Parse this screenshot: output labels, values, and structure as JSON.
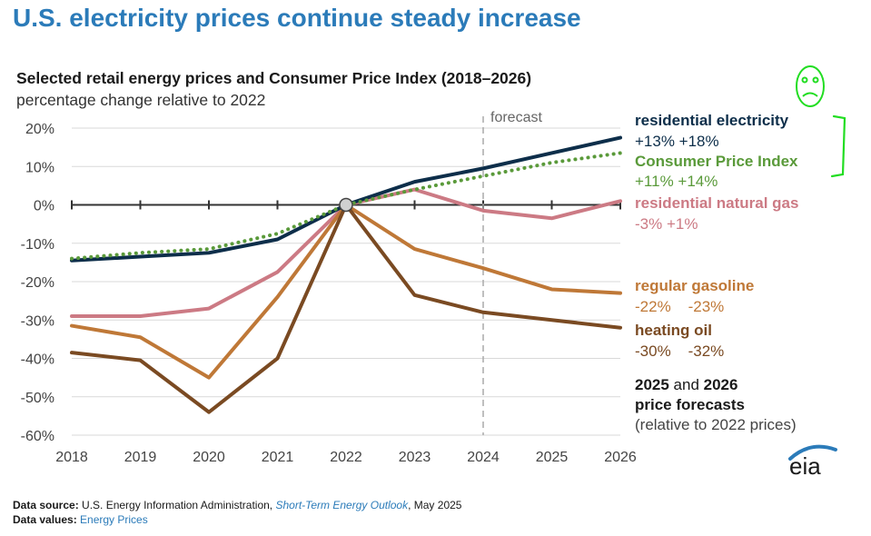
{
  "headline": "U.S. electricity prices continue steady increase",
  "chart_data": {
    "type": "line",
    "title": "Selected retail energy prices and Consumer Price Index (2018–2026)",
    "subtitle": "percentage change relative to 2022",
    "x": [
      2018,
      2019,
      2020,
      2021,
      2022,
      2023,
      2024,
      2025,
      2026
    ],
    "x_tick_labels": [
      "2018",
      "2019",
      "2020",
      "2021",
      "2022",
      "2023",
      "2024",
      "2025",
      "2026"
    ],
    "ylim": [
      -60,
      20
    ],
    "y_ticks": [
      20,
      10,
      0,
      -10,
      -20,
      -30,
      -40,
      -50,
      -60
    ],
    "y_tick_labels": [
      "20%",
      "10%",
      "0%",
      "-10%",
      "-20%",
      "-30%",
      "-40%",
      "-50%",
      "-60%"
    ],
    "grid": true,
    "forecast_start": 2024,
    "forecast_label": "forecast",
    "series": [
      {
        "name": "residential electricity",
        "color": "#0d2e4a",
        "style": "solid",
        "values": [
          -14.5,
          -13.5,
          -12.5,
          -9,
          0,
          6,
          9.5,
          13.5,
          17.5
        ]
      },
      {
        "name": "Consumer Price Index",
        "color": "#5a9a3a",
        "style": "dotted",
        "values": [
          -14,
          -12.5,
          -11.5,
          -7.5,
          0,
          4,
          7.5,
          11,
          13.5
        ]
      },
      {
        "name": "residential natural gas",
        "color": "#cc7a84",
        "style": "solid",
        "values": [
          -29,
          -29,
          -27,
          -17.5,
          0,
          4,
          -1.5,
          -3.5,
          1
        ]
      },
      {
        "name": "regular gasoline",
        "color": "#bf7837",
        "style": "solid",
        "values": [
          -31.5,
          -34.5,
          -45,
          -24,
          0,
          -11.5,
          -16.5,
          -22,
          -23
        ]
      },
      {
        "name": "heating oil",
        "color": "#7a4a22",
        "style": "solid",
        "values": [
          -38.5,
          -40.5,
          -54,
          -40,
          0,
          -23.5,
          -28,
          -30,
          -32
        ]
      }
    ],
    "labels": [
      {
        "name": "residential electricity",
        "forecasts": "+13% +18%",
        "color": "#0d2e4a"
      },
      {
        "name": "Consumer Price Index",
        "forecasts": "+11% +14%",
        "color": "#5a9a3a"
      },
      {
        "name": "residential natural gas",
        "forecasts": "-3% +1%",
        "color": "#cc7a84"
      },
      {
        "name": "regular gasoline",
        "forecasts": "-22%    -23%",
        "color": "#bf7837"
      },
      {
        "name": "heating oil",
        "forecasts": "-30%    -32%",
        "color": "#7a4a22"
      }
    ],
    "note": {
      "line1_a": "2025",
      "line1_b": " and ",
      "line1_c": "2026",
      "line2": "price forecasts",
      "line3": "(relative to 2022 prices)"
    }
  },
  "footer": {
    "source_label": "Data source:",
    "source_text_1": " U.S. Energy Information Administration, ",
    "source_pub": "Short-Term Energy Outlook",
    "source_text_2": ", May 2025",
    "values_label": "Data values:",
    "values_text": " Energy Prices"
  },
  "logo_text": "eia",
  "colors": {
    "headline": "#2b7bb9",
    "annotation": "#22dd22"
  }
}
